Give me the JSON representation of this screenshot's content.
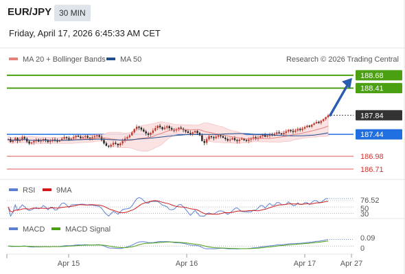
{
  "header": {
    "symbol": "EUR/JPY",
    "timeframe": "30 MIN",
    "datetime": "Friday, April 17, 2026 6:45:33 AM CET",
    "copyright": "Research © 2026 Trading Central"
  },
  "colors": {
    "candle": "#c0392b",
    "candle_dark": "#222222",
    "ma20": "#e8807a",
    "band_fill": "#fbe0e0",
    "ma50": "#1f4e8c",
    "resistance": "#4aa011",
    "support": "#e05a5a",
    "pivot": "#1f6fe0",
    "rsi": "#5b7fd1",
    "rsi_ma": "#d11a1a",
    "macd": "#5b7fd1",
    "macd_signal": "#4aa011"
  },
  "chart_data": [
    {
      "type": "candlestick",
      "panel": "price",
      "legend": [
        "MA 20 + Bollinger Bands",
        "MA 50"
      ],
      "x_ticks": [
        "Apr 15",
        "Apr 16",
        "Apr 17",
        "Apr 27"
      ],
      "ylim": [
        186.55,
        188.85
      ],
      "levels": [
        {
          "value": 188.68,
          "label": "188.68",
          "role": "resistance"
        },
        {
          "value": 188.41,
          "label": "188.41",
          "role": "resistance"
        },
        {
          "value": 187.84,
          "label": "187.84",
          "role": "last"
        },
        {
          "value": 187.44,
          "label": "187.44",
          "role": "pivot"
        },
        {
          "value": 186.98,
          "label": "186.98",
          "role": "support"
        },
        {
          "value": 186.71,
          "label": "186.71",
          "role": "support"
        }
      ],
      "close": [
        187.34,
        187.28,
        187.31,
        187.36,
        187.3,
        187.33,
        187.38,
        187.35,
        187.29,
        187.25,
        187.27,
        187.3,
        187.33,
        187.29,
        187.31,
        187.34,
        187.32,
        187.28,
        187.3,
        187.33,
        187.31,
        187.29,
        187.32,
        187.35,
        187.38,
        187.36,
        187.33,
        187.35,
        187.38,
        187.41,
        187.39,
        187.36,
        187.38,
        187.4,
        187.37,
        187.35,
        187.38,
        187.4,
        187.42,
        187.39,
        187.32,
        187.25,
        187.2,
        187.18,
        187.22,
        187.26,
        187.24,
        187.21,
        187.25,
        187.3,
        187.35,
        187.38,
        187.42,
        187.48,
        187.55,
        187.6,
        187.58,
        187.54,
        187.5,
        187.46,
        187.43,
        187.47,
        187.52,
        187.57,
        187.62,
        187.59,
        187.55,
        187.58,
        187.61,
        187.57,
        187.54,
        187.52,
        187.55,
        187.58,
        187.56,
        187.53,
        187.5,
        187.47,
        187.45,
        187.48,
        187.51,
        187.47,
        187.42,
        187.3,
        187.26,
        187.34,
        187.4,
        187.38,
        187.36,
        187.39,
        187.42,
        187.4,
        187.37,
        187.34,
        187.31,
        187.33,
        187.36,
        187.32,
        187.3,
        187.33,
        187.35,
        187.32,
        187.3,
        187.33,
        187.36,
        187.38,
        187.35,
        187.37,
        187.4,
        187.42,
        187.39,
        187.41,
        187.44,
        187.42,
        187.45,
        187.48,
        187.46,
        187.44,
        187.47,
        187.5,
        187.53,
        187.51,
        187.49,
        187.52,
        187.55,
        187.53,
        187.56,
        187.59,
        187.62,
        187.6,
        187.64,
        187.67,
        187.7,
        187.68,
        187.72,
        187.76,
        187.8,
        187.84
      ],
      "projection": {
        "from": 187.84,
        "to": 188.68
      }
    },
    {
      "type": "line",
      "panel": "rsi",
      "legend": [
        "RSI",
        "9MA"
      ],
      "y_ticks": [
        50,
        30
      ],
      "last_value": 76.52,
      "last_label": "76.52",
      "ylim": [
        20,
        85
      ]
    },
    {
      "type": "line",
      "panel": "macd",
      "legend": [
        "MACD",
        "MACD Signal"
      ],
      "y_ticks": [
        0
      ],
      "last_value": 0.09,
      "last_label": "0.09",
      "ylim": [
        -0.1,
        0.16
      ]
    }
  ]
}
